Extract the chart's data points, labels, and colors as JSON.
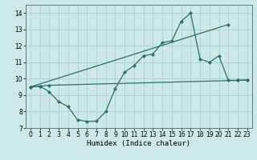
{
  "line1_x": [
    0,
    1,
    2,
    22,
    23
  ],
  "line1_y": [
    9.5,
    9.55,
    9.6,
    9.9,
    9.92
  ],
  "line2_x": [
    0,
    1,
    2,
    3,
    4,
    5,
    6,
    7,
    8,
    9,
    10,
    11,
    12,
    13,
    14,
    15,
    16,
    17,
    18,
    19,
    20,
    21,
    22,
    23
  ],
  "line2_y": [
    9.5,
    9.55,
    9.2,
    8.6,
    8.3,
    7.5,
    7.4,
    7.42,
    8.0,
    9.4,
    10.4,
    10.8,
    11.4,
    11.5,
    12.2,
    12.3,
    13.5,
    14.0,
    11.2,
    11.0,
    11.4,
    9.9,
    9.9,
    9.92
  ],
  "line3_x": [
    0,
    21
  ],
  "line3_y": [
    9.5,
    13.3
  ],
  "xlim": [
    -0.5,
    23.5
  ],
  "ylim": [
    7.0,
    14.5
  ],
  "yticks": [
    7,
    8,
    9,
    10,
    11,
    12,
    13,
    14
  ],
  "xticks": [
    0,
    1,
    2,
    3,
    4,
    5,
    6,
    7,
    8,
    9,
    10,
    11,
    12,
    13,
    14,
    15,
    16,
    17,
    18,
    19,
    20,
    21,
    22,
    23
  ],
  "xlabel": "Humidex (Indice chaleur)",
  "bg_color": "#cce8e8",
  "grid_color": "#aacccc",
  "line_color": "#2e6e6e",
  "tick_fontsize": 5.5,
  "xlabel_fontsize": 6.5,
  "markersize": 2.5,
  "linewidth": 0.9
}
